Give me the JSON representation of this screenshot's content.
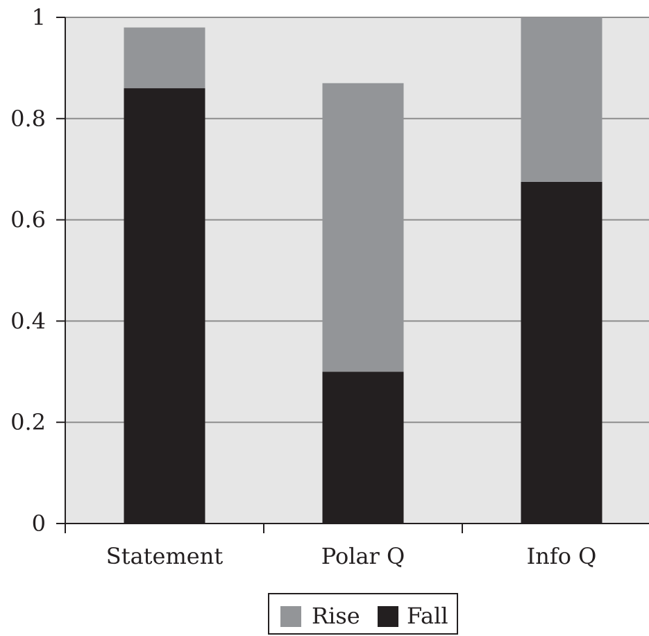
{
  "colors": {
    "plot_background": "#e6e6e6",
    "gridline": "#8c8c8c",
    "axis": "#231f20",
    "rise": "#939598",
    "fall": "#231f20"
  },
  "chart_data": {
    "type": "bar",
    "stacked": true,
    "title": "",
    "xlabel": "",
    "ylabel": "",
    "categories": [
      "Statement",
      "Polar Q",
      "Info Q"
    ],
    "series": [
      {
        "name": "Fall",
        "values": [
          0.86,
          0.3,
          0.675
        ]
      },
      {
        "name": "Rise",
        "values": [
          0.12,
          0.57,
          0.325
        ]
      }
    ],
    "ylim": [
      0,
      1
    ],
    "yticks": [
      0,
      0.2,
      0.4,
      0.6,
      0.8,
      1
    ],
    "ytick_labels": [
      "0",
      "0.2",
      "0.4",
      "0.6",
      "0.8",
      "1"
    ],
    "grid": true,
    "legend": {
      "position": "bottom-center",
      "entries": [
        "Rise",
        "Fall"
      ]
    }
  }
}
